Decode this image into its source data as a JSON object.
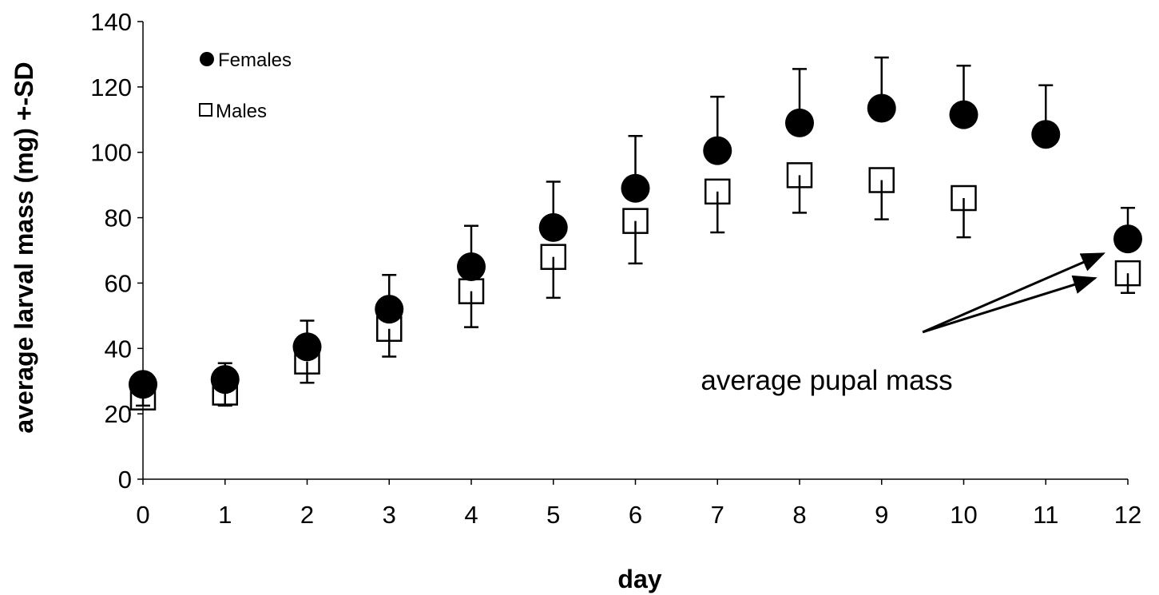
{
  "chart_data": {
    "type": "scatter",
    "xlabel": "day",
    "ylabel": "average larval mass (mg) +-SD",
    "xlim": [
      0,
      12
    ],
    "ylim": [
      0,
      140
    ],
    "x_ticks": [
      "0",
      "1",
      "2",
      "3",
      "4",
      "5",
      "6",
      "7",
      "8",
      "9",
      "10",
      "11",
      "12"
    ],
    "y_ticks": [
      "0",
      "20",
      "40",
      "60",
      "80",
      "100",
      "120",
      "140"
    ],
    "grid": false,
    "legend_position": "top-left",
    "series": [
      {
        "name": "Females",
        "marker": "filled-circle",
        "color": "#000000",
        "error_direction": "up",
        "points": [
          {
            "x": 0,
            "y": 29,
            "sd": 3.5
          },
          {
            "x": 1,
            "y": 30.5,
            "sd": 5
          },
          {
            "x": 2,
            "y": 40.5,
            "sd": 8
          },
          {
            "x": 3,
            "y": 52,
            "sd": 10.5
          },
          {
            "x": 4,
            "y": 65,
            "sd": 12.5
          },
          {
            "x": 5,
            "y": 77,
            "sd": 14
          },
          {
            "x": 6,
            "y": 89,
            "sd": 16
          },
          {
            "x": 7,
            "y": 100.5,
            "sd": 16.5
          },
          {
            "x": 8,
            "y": 109,
            "sd": 16.5
          },
          {
            "x": 9,
            "y": 113.5,
            "sd": 15.5
          },
          {
            "x": 10,
            "y": 111.5,
            "sd": 15
          },
          {
            "x": 11,
            "y": 105.5,
            "sd": 15
          },
          {
            "x": 12,
            "y": 73.5,
            "sd": 9.5
          }
        ]
      },
      {
        "name": "Males",
        "marker": "open-square",
        "color": "#000000",
        "error_direction": "down",
        "points": [
          {
            "x": 0,
            "y": 25,
            "sd": 2.5
          },
          {
            "x": 1,
            "y": 26.5,
            "sd": 4
          },
          {
            "x": 2,
            "y": 36,
            "sd": 6.5
          },
          {
            "x": 3,
            "y": 46,
            "sd": 8.5
          },
          {
            "x": 4,
            "y": 57.5,
            "sd": 11
          },
          {
            "x": 5,
            "y": 68,
            "sd": 12.5
          },
          {
            "x": 6,
            "y": 79,
            "sd": 13
          },
          {
            "x": 7,
            "y": 88,
            "sd": 12.5
          },
          {
            "x": 8,
            "y": 93,
            "sd": 11.5
          },
          {
            "x": 9,
            "y": 91.5,
            "sd": 12
          },
          {
            "x": 10,
            "y": 86,
            "sd": 12
          },
          {
            "x": 12,
            "y": 63,
            "sd": 6
          }
        ]
      }
    ],
    "annotation": {
      "text": "average pupal mass",
      "arrow_from": {
        "x": 9.5,
        "y": 45
      },
      "arrow_targets": [
        {
          "x": 11.7,
          "y": 69
        },
        {
          "x": 11.6,
          "y": 61.5
        }
      ]
    }
  }
}
